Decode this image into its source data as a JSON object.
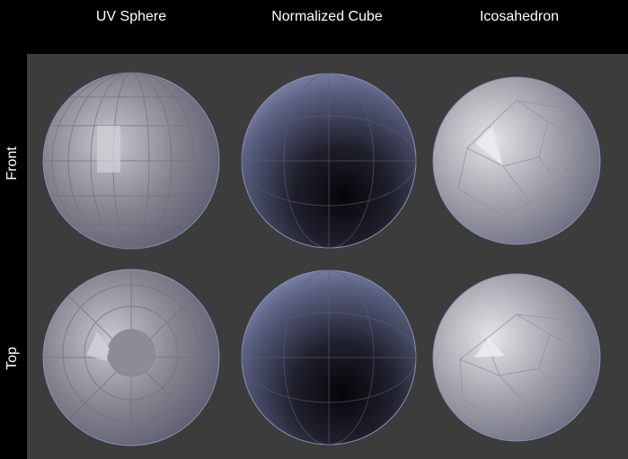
{
  "columns": [
    "UV Sphere",
    "Normalized Cube",
    "Icosahedron"
  ],
  "rows": [
    "Front",
    "Top"
  ],
  "colors": {
    "background": "#000000",
    "panel": "#3c3c3c",
    "label": "#ffffff",
    "sphere_edge": "#8a90b4"
  }
}
